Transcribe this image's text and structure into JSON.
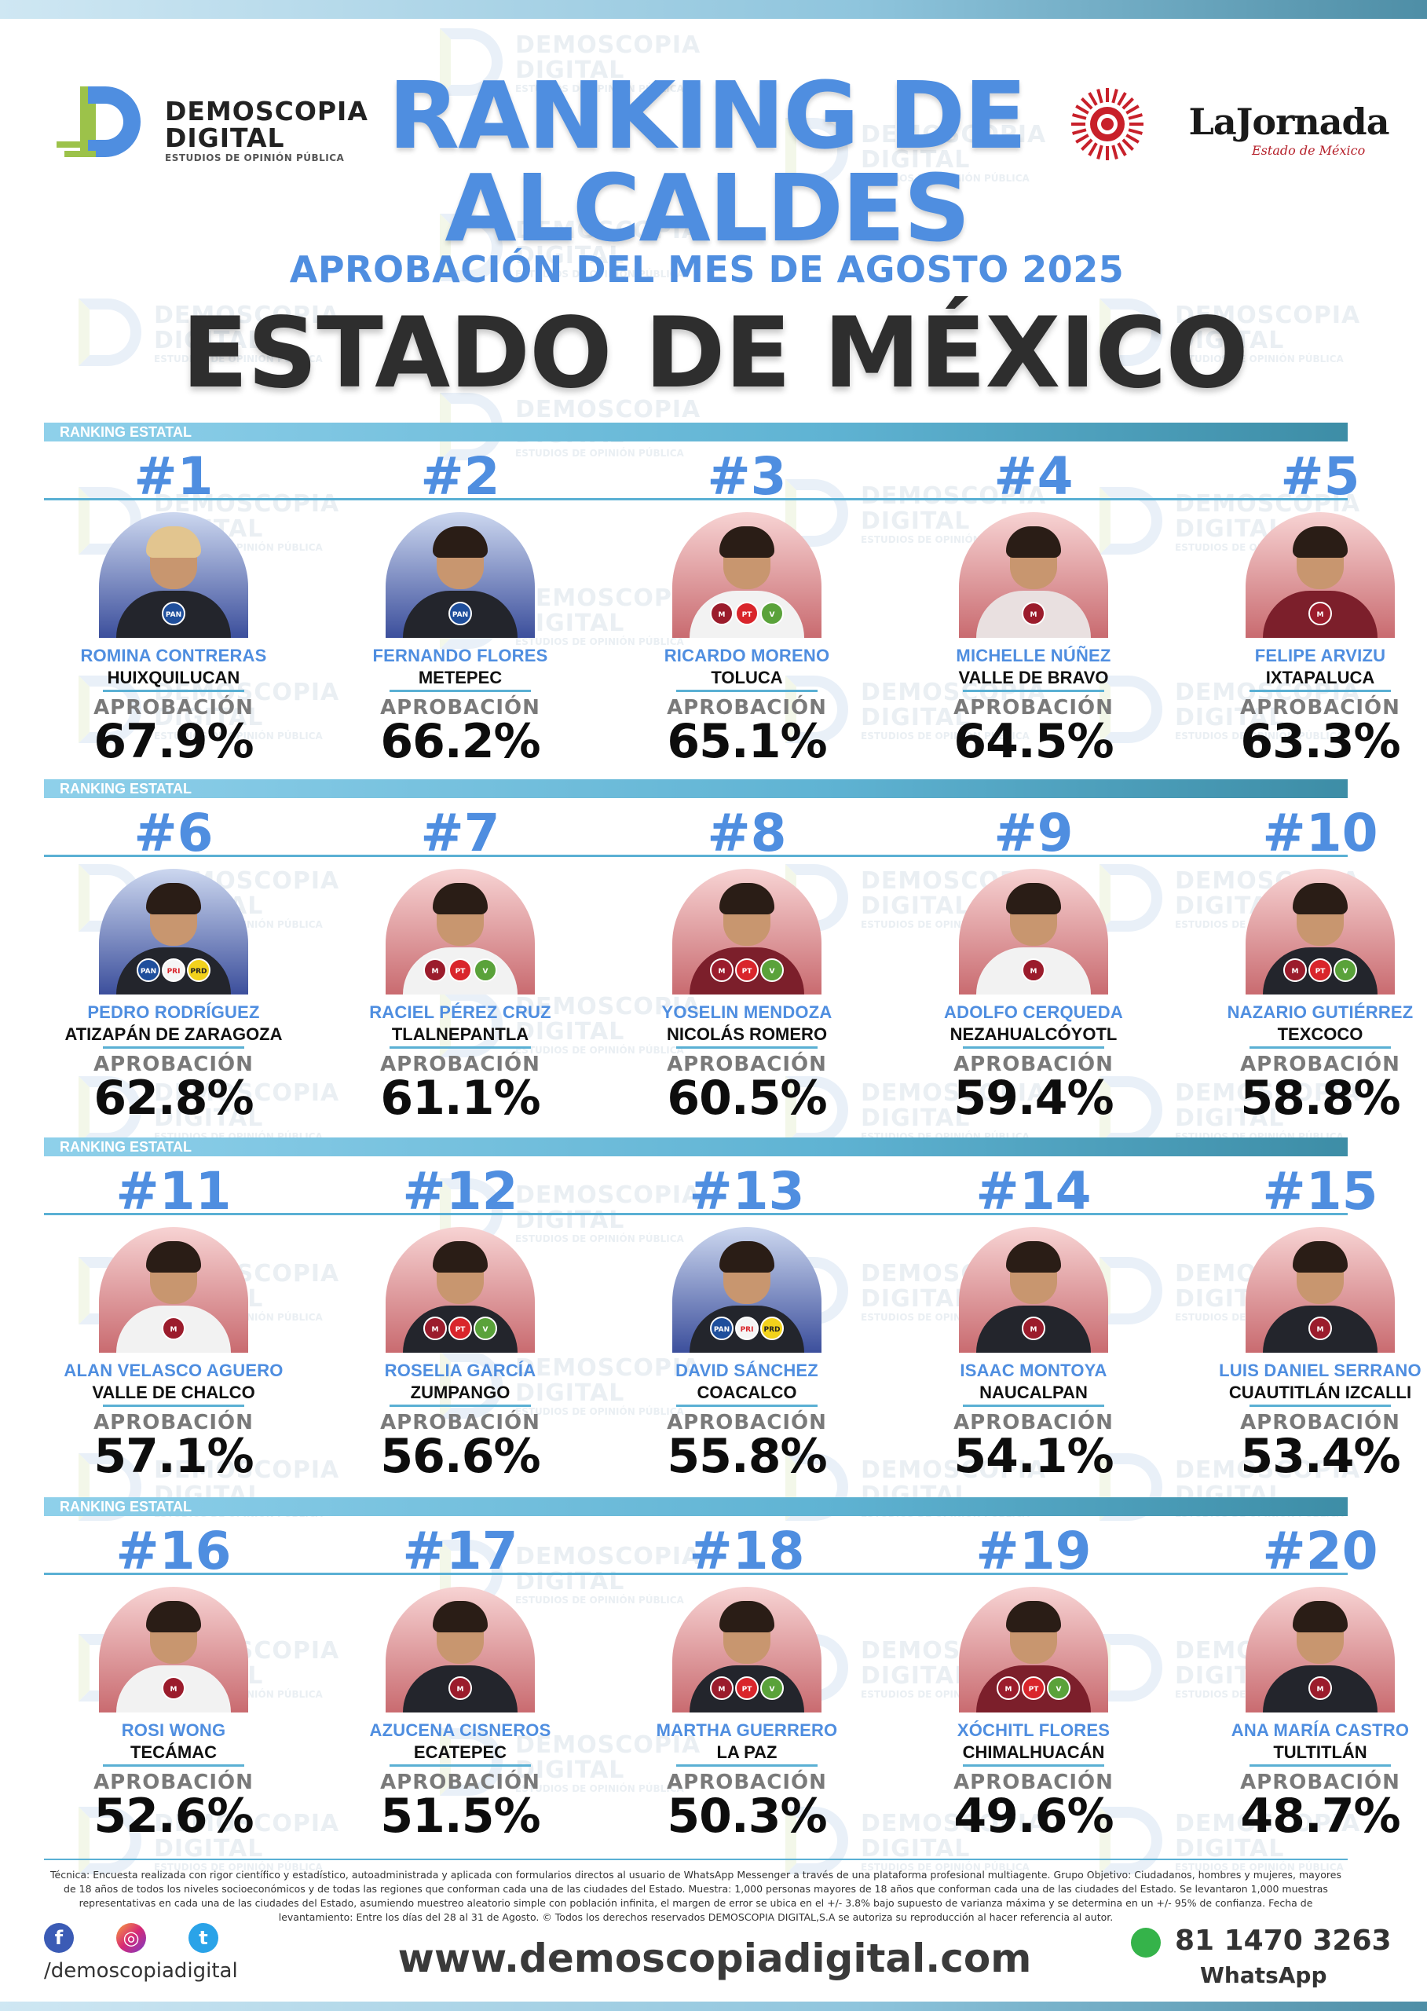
{
  "header": {
    "brand_left": {
      "line1": "DEMOSCOPIA",
      "line2": "DIGITAL",
      "tagline": "ESTUDIOS DE OPINIÓN PÚBLICA"
    },
    "brand_right": {
      "name": "LaJornada",
      "sub": "Estado de México"
    },
    "title_line1": "RANKING DE",
    "title_line2": "ALCALDES",
    "subtitle": "APROBACIÓN DEL MES DE AGOSTO 2025",
    "state": "ESTADO DE MÉXICO"
  },
  "section_label": "RANKING ESTATAL",
  "approval_label": "APROBACIÓN",
  "rows": [
    [
      {
        "rank": "#1",
        "name": "ROMINA CONTRERAS",
        "city": "HUIXQUILUCAN",
        "pct": "67.9%"
      },
      {
        "rank": "#2",
        "name": "FERNANDO FLORES",
        "city": "METEPEC",
        "pct": "66.2%"
      },
      {
        "rank": "#3",
        "name": "RICARDO MORENO",
        "city": "TOLUCA",
        "pct": "65.1%"
      },
      {
        "rank": "#4",
        "name": "MICHELLE NÚÑEZ",
        "city": "VALLE DE BRAVO",
        "pct": "64.5%"
      },
      {
        "rank": "#5",
        "name": "FELIPE ARVIZU",
        "city": "IXTAPALUCA",
        "pct": "63.3%"
      }
    ],
    [
      {
        "rank": "#6",
        "name": "PEDRO RODRÍGUEZ",
        "city": "ATIZAPÁN DE ZARAGOZA",
        "pct": "62.8%"
      },
      {
        "rank": "#7",
        "name": "RACIEL PÉREZ CRUZ",
        "city": "TLALNEPANTLA",
        "pct": "61.1%"
      },
      {
        "rank": "#8",
        "name": "YOSELIN MENDOZA",
        "city": "NICOLÁS ROMERO",
        "pct": "60.5%"
      },
      {
        "rank": "#9",
        "name": "ADOLFO CERQUEDA",
        "city": "NEZAHUALCÓYOTL",
        "pct": "59.4%"
      },
      {
        "rank": "#10",
        "name": "NAZARIO GUTIÉRREZ",
        "city": "TEXCOCO",
        "pct": "58.8%"
      }
    ],
    [
      {
        "rank": "#11",
        "name": "ALAN VELASCO AGUERO",
        "city": "VALLE DE CHALCO",
        "pct": "57.1%"
      },
      {
        "rank": "#12",
        "name": "ROSELIA GARCÍA",
        "city": "ZUMPANGO",
        "pct": "56.6%"
      },
      {
        "rank": "#13",
        "name": "DAVID SÁNCHEZ",
        "city": "COACALCO",
        "pct": "55.8%"
      },
      {
        "rank": "#14",
        "name": "ISAAC MONTOYA",
        "city": "NAUCALPAN",
        "pct": "54.1%"
      },
      {
        "rank": "#15",
        "name": "LUIS DANIEL SERRANO",
        "city": "CUAUTITLÁN IZCALLI",
        "pct": "53.4%"
      }
    ],
    [
      {
        "rank": "#16",
        "name": "ROSI WONG",
        "city": "TECÁMAC",
        "pct": "52.6%"
      },
      {
        "rank": "#17",
        "name": "AZUCENA CISNEROS",
        "city": "ECATEPEC",
        "pct": "51.5%"
      },
      {
        "rank": "#18",
        "name": "MARTHA GUERRERO",
        "city": "LA PAZ",
        "pct": "50.3%"
      },
      {
        "rank": "#19",
        "name": "XÓCHITL FLORES",
        "city": "CHIMALHUACÁN",
        "pct": "49.6%"
      },
      {
        "rank": "#20",
        "name": "ANA MARÍA CASTRO",
        "city": "TULTITLÁN",
        "pct": "48.7%"
      }
    ]
  ],
  "footnote": "Técnica: Encuesta realizada con rigor científico y estadístico, autoadministrada y aplicada con formularios directos al usuario de WhatsApp Messenger a través de una plataforma profesional multiagente. Grupo Objetivo: Ciudadanos, hombres y mujeres, mayores de 18 años de todos los niveles socioeconómicos y de todas las regiones que conforman cada una de las ciudades del Estado. Muestra: 1,000 personas mayores de 18 años que conforman cada una de las ciudades del Estado. Se levantaron 1,000 muestras representativas en cada una de las ciudades del Estado, asumiendo muestreo aleatorio simple con población infinita, el margen de error se ubica en el +/- 3.8% bajo supuesto de varianza máxima y se determina en un +/- 95% de confianza. Fecha de levantamiento: Entre los días del 28 al 31 de Agosto. © Todos los derechos reservados DEMOSCOPIA DIGITAL,S.A se autoriza su reproducción al hacer referencia al autor.",
  "footer": {
    "social_handle": "/demoscopiadigital",
    "website": "www.demoscopiadigital.com",
    "phone": "81 1470 3263",
    "whatsapp_label": "WhatsApp"
  },
  "colors": {
    "accent": "#4f8ee0",
    "section": "#5ab0d4",
    "morena": "#9b1c2c"
  },
  "icons": [
    "facebook-icon",
    "instagram-icon",
    "twitter-icon",
    "whatsapp-icon"
  ]
}
